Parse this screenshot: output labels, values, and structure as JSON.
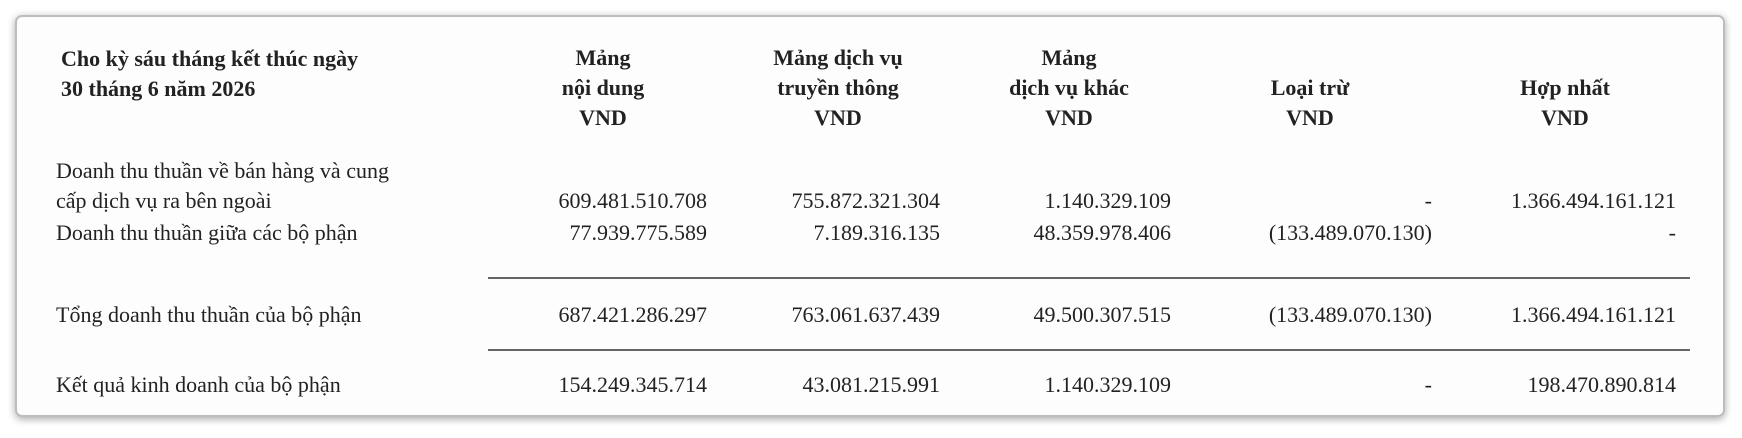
{
  "header": {
    "title": [
      "Cho kỳ sáu tháng kết thúc ngày",
      "30 tháng 6 năm 2026"
    ],
    "columns": [
      [
        "Mảng",
        "nội dung",
        "VND"
      ],
      [
        "Mảng dịch vụ",
        "truyền thông",
        "VND"
      ],
      [
        "Mảng",
        "dịch vụ khác",
        "VND"
      ],
      [
        "Loại trừ",
        "VND"
      ],
      [
        "Hợp nhất",
        "VND"
      ]
    ]
  },
  "table": {
    "rows": [
      {
        "label": [
          "Doanh thu thuần về bán hàng và cung",
          "cấp dịch vụ ra bên ngoài"
        ],
        "values": [
          "609.481.510.708",
          "755.872.321.304",
          "1.140.329.109",
          "-",
          "1.366.494.161.121"
        ]
      },
      {
        "label": [
          "Doanh thu thuần giữa các bộ phận"
        ],
        "values": [
          "77.939.775.589",
          "7.189.316.135",
          "48.359.978.406",
          "(133.489.070.130)",
          "-"
        ]
      },
      {
        "label": [
          "Tổng doanh thu thuần của bộ phận"
        ],
        "values": [
          "687.421.286.297",
          "763.061.637.439",
          "49.500.307.515",
          "(133.489.070.130)",
          "1.366.494.161.121"
        ]
      },
      {
        "label": [
          "Kết quả kinh doanh của bộ phận"
        ],
        "values": [
          "154.249.345.714",
          "43.081.215.991",
          "1.140.329.109",
          "-",
          "198.470.890.814"
        ]
      }
    ]
  }
}
